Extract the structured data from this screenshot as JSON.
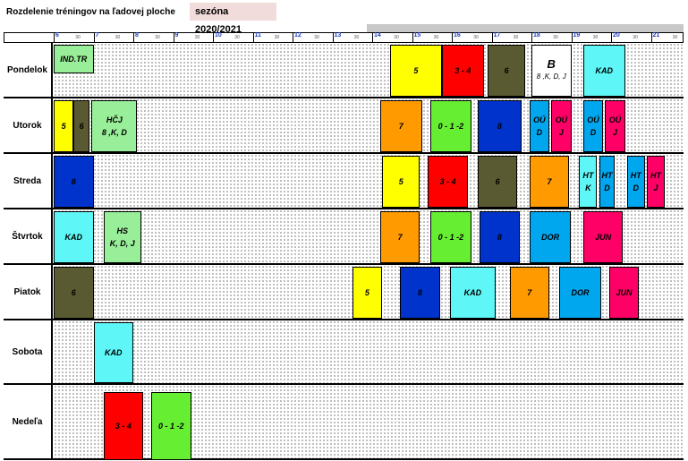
{
  "title": "Rozdelenie tréningov na ľadovej ploche",
  "season": "sezóna 2020/2021",
  "colors": {
    "yellow": "#ffff00",
    "red": "#ff0000",
    "olive": "#5a5a32",
    "cyan": "#5ef6f6",
    "orange": "#ff9a00",
    "green": "#66ee33",
    "darkblue": "#0033cc",
    "blue": "#00a6ee",
    "magenta": "#ff0066",
    "lightgreen": "#99ee99",
    "white": "#ffffff"
  },
  "hours": [
    "6",
    "7",
    "8",
    "9",
    "10",
    "11",
    "12",
    "13",
    "14",
    "15",
    "16",
    "17",
    "18",
    "19",
    "20",
    "21"
  ],
  "half_label": "30",
  "days": [
    {
      "name": "Pondelok",
      "blocks": [
        {
          "lines": [
            "IND.TR"
          ],
          "color": "lightgreen"
        },
        {
          "lines": [
            "5"
          ],
          "color": "yellow"
        },
        {
          "lines": [
            "3 - 4"
          ],
          "color": "red"
        },
        {
          "lines": [
            "6"
          ],
          "color": "olive"
        },
        {
          "lines": [
            "B",
            "8 ,K, D, J"
          ],
          "color": "white"
        },
        {
          "lines": [
            "KAD"
          ],
          "color": "cyan"
        }
      ]
    },
    {
      "name": "Utorok",
      "blocks": [
        {
          "lines": [
            "5"
          ],
          "color": "yellow"
        },
        {
          "lines": [
            "6"
          ],
          "color": "olive"
        },
        {
          "lines": [
            "HČJ",
            "8 ,K, D"
          ],
          "color": "lightgreen"
        },
        {
          "lines": [
            "7"
          ],
          "color": "orange"
        },
        {
          "lines": [
            "0 - 1 -2"
          ],
          "color": "green"
        },
        {
          "lines": [
            "8"
          ],
          "color": "darkblue"
        },
        {
          "lines": [
            "OÚ",
            "D"
          ],
          "color": "blue"
        },
        {
          "lines": [
            "OÚ",
            "J"
          ],
          "color": "magenta"
        },
        {
          "lines": [
            "OÚ",
            "D"
          ],
          "color": "blue"
        },
        {
          "lines": [
            "OÚ",
            "J"
          ],
          "color": "magenta"
        }
      ]
    },
    {
      "name": "Streda",
      "blocks": [
        {
          "lines": [
            "8"
          ],
          "color": "darkblue"
        },
        {
          "lines": [
            "5"
          ],
          "color": "yellow"
        },
        {
          "lines": [
            "3 - 4"
          ],
          "color": "red"
        },
        {
          "lines": [
            "6"
          ],
          "color": "olive"
        },
        {
          "lines": [
            "7"
          ],
          "color": "orange"
        },
        {
          "lines": [
            "HT",
            "K"
          ],
          "color": "cyan"
        },
        {
          "lines": [
            "HT",
            "D"
          ],
          "color": "blue"
        },
        {
          "lines": [
            "HT",
            "D"
          ],
          "color": "blue"
        },
        {
          "lines": [
            "HT",
            "J"
          ],
          "color": "magenta"
        }
      ]
    },
    {
      "name": "Štvrtok",
      "blocks": [
        {
          "lines": [
            "KAD"
          ],
          "color": "cyan"
        },
        {
          "lines": [
            "HS",
            "K, D, J"
          ],
          "color": "lightgreen"
        },
        {
          "lines": [
            "7"
          ],
          "color": "orange"
        },
        {
          "lines": [
            "0 - 1 -2"
          ],
          "color": "green"
        },
        {
          "lines": [
            "8"
          ],
          "color": "darkblue"
        },
        {
          "lines": [
            "DOR"
          ],
          "color": "blue"
        },
        {
          "lines": [
            "JUN"
          ],
          "color": "magenta"
        }
      ]
    },
    {
      "name": "Piatok",
      "blocks": [
        {
          "lines": [
            "6"
          ],
          "color": "olive"
        },
        {
          "lines": [
            "5"
          ],
          "color": "yellow"
        },
        {
          "lines": [
            "8"
          ],
          "color": "darkblue"
        },
        {
          "lines": [
            "KAD"
          ],
          "color": "cyan"
        },
        {
          "lines": [
            "7"
          ],
          "color": "orange"
        },
        {
          "lines": [
            "DOR"
          ],
          "color": "blue"
        },
        {
          "lines": [
            "JUN"
          ],
          "color": "magenta"
        }
      ]
    },
    {
      "name": "Sobota",
      "blocks": [
        {
          "lines": [
            "KAD"
          ],
          "color": "cyan"
        }
      ]
    },
    {
      "name": "Nedeľa",
      "blocks": [
        {
          "lines": [
            "3 - 4"
          ],
          "color": "red"
        },
        {
          "lines": [
            "0 - 1 -2"
          ],
          "color": "green"
        }
      ]
    }
  ]
}
